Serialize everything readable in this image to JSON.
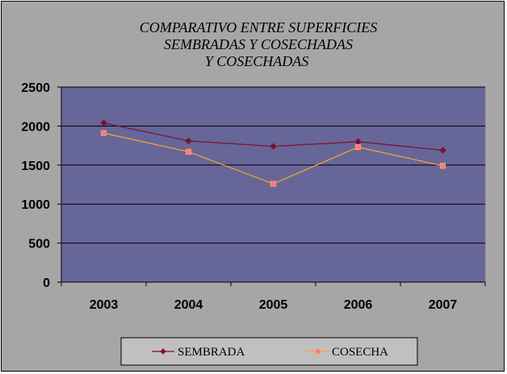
{
  "chart_data": {
    "type": "line",
    "title_lines": [
      "COMPARATIVO ENTRE SUPERFICIES",
      "SEMBRADAS Y COSECHADAS",
      "Y COSECHADAS"
    ],
    "categories": [
      "2003",
      "2004",
      "2005",
      "2006",
      "2007"
    ],
    "series": [
      {
        "name": "SEMBRADA",
        "values": [
          2040,
          1810,
          1740,
          1800,
          1690
        ],
        "color": "#7b1030",
        "marker": "diamond"
      },
      {
        "name": "COSECHA",
        "values": [
          1910,
          1670,
          1260,
          1730,
          1490
        ],
        "color": "#ffa62b",
        "marker": "square"
      }
    ],
    "ylim": [
      0,
      2500
    ],
    "yticks": [
      "0",
      "500",
      "1000",
      "1500",
      "2000",
      "2500"
    ],
    "grid": true,
    "legend_position": "bottom",
    "colors": {
      "plot_background": "#666699",
      "chart_background": "#a6a6a6",
      "gridline": "#000000"
    }
  }
}
